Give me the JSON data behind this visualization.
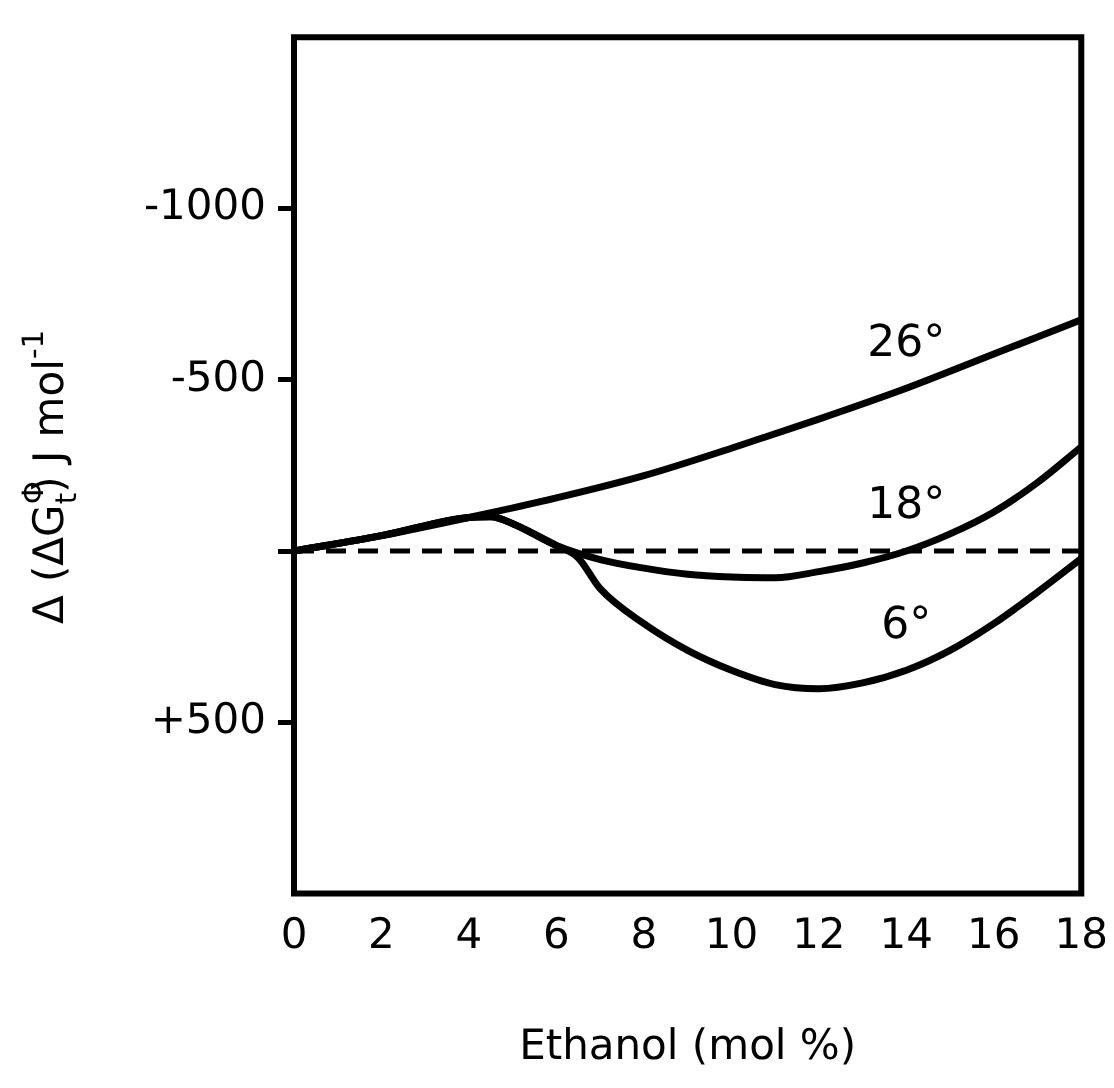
{
  "chart_data": {
    "type": "line",
    "xlabel": "Ethanol (mol %)",
    "ylabel": "Δ (ΔG$^{Φ}$$_{t}$) J mol$^{-1}$",
    "xlim": [
      0,
      18
    ],
    "xticks": [
      0,
      2,
      4,
      6,
      8,
      10,
      12,
      14,
      16,
      18
    ],
    "ylim": [
      1000,
      -1500
    ],
    "yticks": [
      -1000,
      -500,
      {
        "value": 0,
        "label": null
      },
      "+500"
    ],
    "series": [
      {
        "name": "26°",
        "color": "#000000",
        "x": [
          0,
          2,
          4,
          6,
          8,
          10,
          12,
          14,
          16,
          18
        ],
        "values": [
          0,
          -45,
          -98,
          -155,
          -220,
          -300,
          -385,
          -475,
          -575,
          -675
        ]
      },
      {
        "name": "18°",
        "color": "#000000",
        "x": [
          0,
          2,
          4,
          4.5,
          5,
          6,
          7,
          8,
          9,
          10,
          11,
          12,
          13,
          14,
          15,
          16,
          17,
          18
        ],
        "values": [
          0,
          -45,
          -98,
          -100,
          -80,
          -16,
          25,
          50,
          68,
          76,
          78,
          60,
          35,
          0,
          -50,
          -114,
          -200,
          -304
        ]
      },
      {
        "name": "6°",
        "color": "#000000",
        "x": [
          0,
          2,
          4,
          4.5,
          5,
          6,
          6.5,
          7,
          8,
          9,
          10,
          11,
          12,
          13,
          14,
          15,
          16,
          17,
          18
        ],
        "values": [
          0,
          -45,
          -98,
          -100,
          -80,
          -16,
          20,
          110,
          212,
          290,
          348,
          390,
          402,
          385,
          348,
          290,
          212,
          120,
          22
        ]
      }
    ],
    "ref_lines": [
      {
        "axis": "y",
        "value": 0,
        "line_style": "dashed",
        "color": "#000000"
      }
    ],
    "grid": false,
    "legend": false,
    "marker": "none",
    "line_style": "solid"
  }
}
